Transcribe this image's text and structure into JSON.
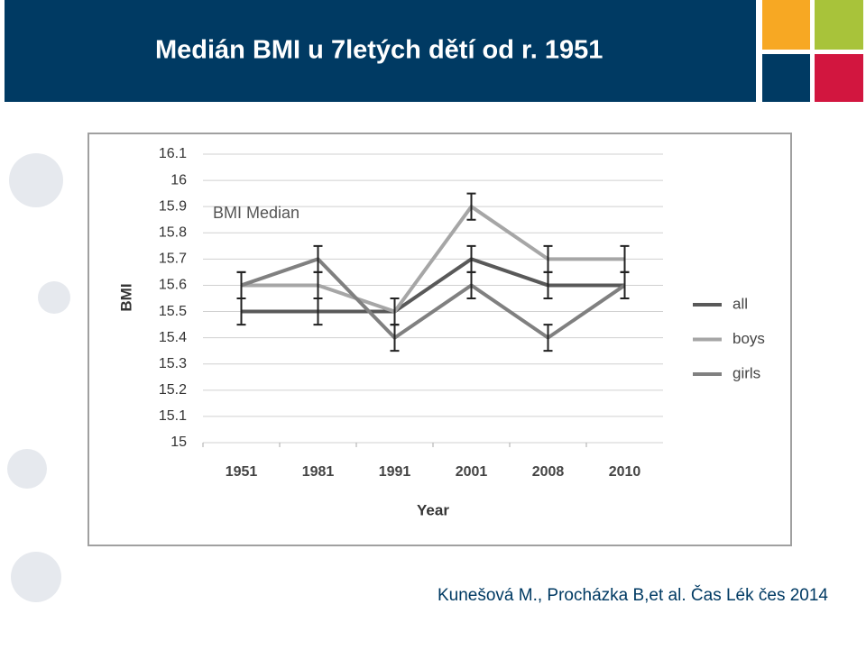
{
  "header": {
    "title": "Medián BMI u 7letých dětí od r. 1951"
  },
  "citation": "Kunešová M., Procházka B,et al.  Čas Lék čes 2014",
  "chart_data": {
    "type": "line",
    "annotation": "BMI Median",
    "xlabel": "Year",
    "ylabel": "BMI",
    "categories": [
      "1951",
      "1981",
      "1991",
      "2001",
      "2008",
      "2010"
    ],
    "series": [
      {
        "name": "all",
        "color": "#595959",
        "values": [
          15.5,
          15.5,
          15.5,
          15.7,
          15.6,
          15.6
        ],
        "errors": [
          0.05,
          0.05,
          0.05,
          0.05,
          0.05,
          0.05
        ]
      },
      {
        "name": "boys",
        "color": "#a6a6a6",
        "values": [
          15.6,
          15.6,
          15.5,
          15.9,
          15.7,
          15.7
        ],
        "errors": [
          0.05,
          0.05,
          0.05,
          0.05,
          0.05,
          0.05
        ]
      },
      {
        "name": "girls",
        "color": "#808080",
        "values": [
          15.6,
          15.7,
          15.4,
          15.6,
          15.4,
          15.6
        ],
        "errors": [
          0.05,
          0.05,
          0.05,
          0.05,
          0.05,
          0.05
        ]
      }
    ],
    "ylim": [
      15,
      16.1
    ],
    "yticks": [
      15,
      15.1,
      15.2,
      15.3,
      15.4,
      15.5,
      15.6,
      15.7,
      15.8,
      15.9,
      16,
      16.1
    ],
    "grid": true,
    "legend": "right"
  }
}
